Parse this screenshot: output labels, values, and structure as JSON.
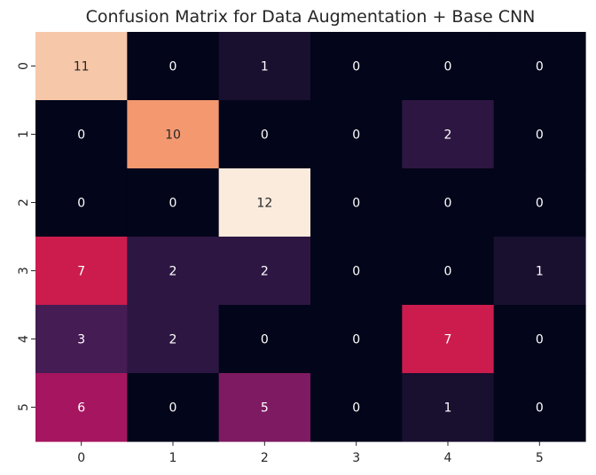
{
  "chart_data": {
    "type": "heatmap",
    "title": "Confusion Matrix for Data Augmentation + Base CNN",
    "x_categories": [
      "0",
      "1",
      "2",
      "3",
      "4",
      "5"
    ],
    "y_categories": [
      "0",
      "1",
      "2",
      "3",
      "4",
      "5"
    ],
    "values": [
      [
        11,
        0,
        1,
        0,
        0,
        0
      ],
      [
        0,
        10,
        0,
        0,
        2,
        0
      ],
      [
        0,
        0,
        12,
        0,
        0,
        0
      ],
      [
        7,
        2,
        2,
        0,
        0,
        1
      ],
      [
        3,
        2,
        0,
        0,
        7,
        0
      ],
      [
        6,
        0,
        5,
        0,
        1,
        0
      ]
    ],
    "value_range": [
      0,
      12
    ],
    "colormap": "rocket",
    "colorbar": false,
    "annotations": true,
    "grid": false
  }
}
